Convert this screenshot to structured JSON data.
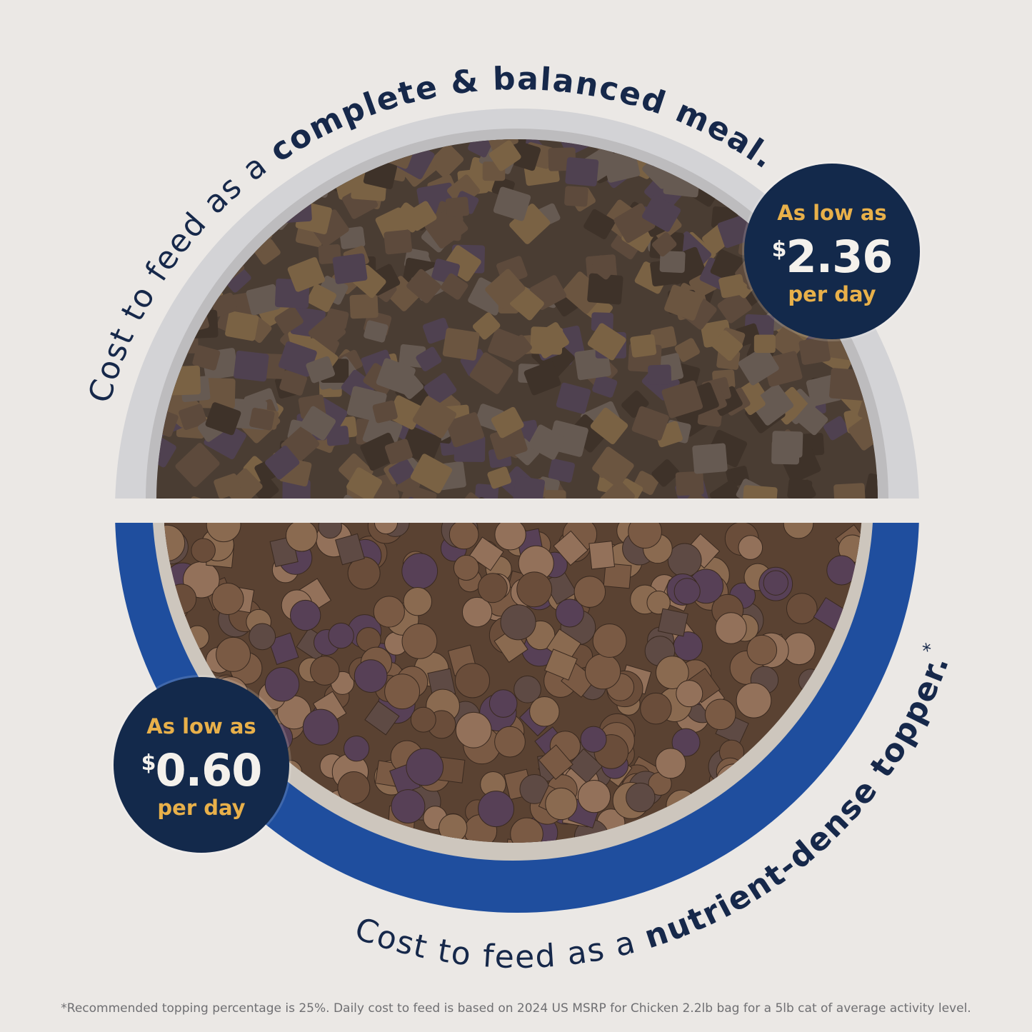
{
  "top_heading": {
    "regular": "Cost to feed as a ",
    "bold": "complete & balanced meal."
  },
  "bottom_heading": {
    "regular": "Cost to feed as a ",
    "bold": "nutrient-dense topper.",
    "mark": "*"
  },
  "badges": [
    {
      "lead": "As low as",
      "currency": "$",
      "amount": "2.36",
      "tail": "per day"
    },
    {
      "lead": "As low as",
      "currency": "$",
      "amount": "0.60",
      "tail": "per day"
    }
  ],
  "footnote": "*Recommended topping percentage is 25%. Daily cost to feed is based on 2024 US MSRP for Chicken 2.2lb bag for a 5lb cat of average activity level.",
  "colors": {
    "background": "#ebe8e5",
    "navy": "#13294b",
    "gold": "#e8b04a",
    "bowl_blue": "#1f4e9e",
    "bowl_gray": "#cfcfd1"
  }
}
